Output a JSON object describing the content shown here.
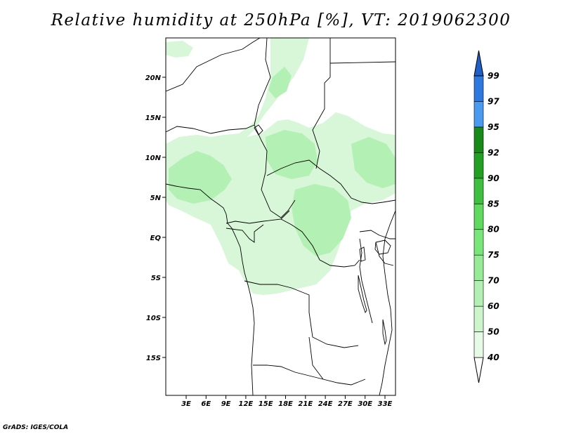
{
  "title": "Relative humidity at 250hPa [%], VT: 2019062300",
  "credit": "GrADS: IGES/COLA",
  "axes": {
    "lat_labels": [
      "20N",
      "15N",
      "10N",
      "5N",
      "EQ",
      "5S",
      "10S",
      "15S"
    ],
    "lon_labels": [
      "3E",
      "6E",
      "9E",
      "12E",
      "15E",
      "18E",
      "21E",
      "24E",
      "27E",
      "30E",
      "33E"
    ]
  },
  "colorbar": {
    "levels": [
      "40",
      "50",
      "60",
      "70",
      "75",
      "80",
      "85",
      "90",
      "92",
      "95",
      "97",
      "99"
    ],
    "colors": [
      "#ffffff",
      "#e6fae6",
      "#ccf5cc",
      "#b3f0b3",
      "#96eb96",
      "#78e678",
      "#5fda5f",
      "#3fbf3f",
      "#239f23",
      "#178a17",
      "#4a9af0",
      "#2f78e0",
      "#1f5fc8"
    ]
  }
}
